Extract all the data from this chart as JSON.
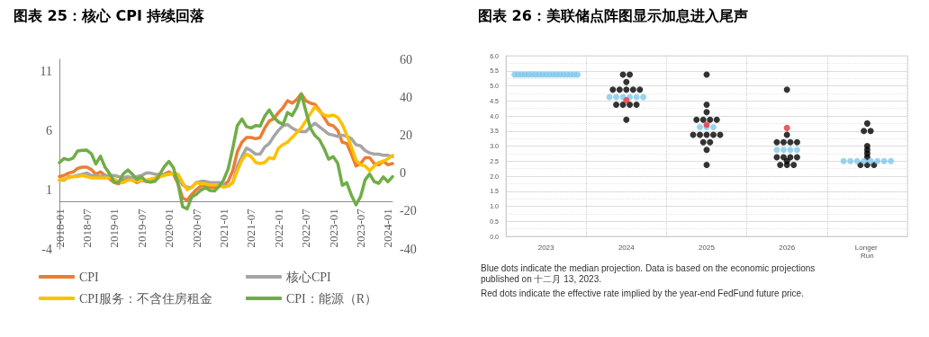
{
  "chart_data": [
    {
      "type": "line",
      "title": "图表 25：核心 CPI 持续回落",
      "categories": [
        "2018-01",
        null,
        null,
        null,
        null,
        null,
        "2018-07",
        null,
        null,
        null,
        null,
        null,
        "2019-01",
        null,
        null,
        null,
        null,
        null,
        "2019-07",
        null,
        null,
        null,
        null,
        null,
        "2020-01",
        null,
        null,
        null,
        null,
        null,
        "2020-07",
        null,
        null,
        null,
        null,
        null,
        "2021-01",
        null,
        null,
        null,
        null,
        null,
        "2021-07",
        null,
        null,
        null,
        null,
        null,
        "2022-01",
        null,
        null,
        null,
        null,
        null,
        "2022-07",
        null,
        null,
        null,
        null,
        null,
        "2023-01",
        null,
        null,
        null,
        null,
        null,
        "2023-07",
        null,
        null,
        null,
        null,
        null,
        "2024-01",
        null
      ],
      "ylim": [
        -4,
        12
      ],
      "yticks": [
        -4,
        1,
        6,
        11
      ],
      "y2lim": [
        -40,
        60
      ],
      "y2ticks": [
        -40,
        -20,
        0,
        20,
        40,
        60
      ],
      "legend": "bottom",
      "line_style": "solid",
      "series": [
        {
          "name": "CPI",
          "color": "#ed7d31",
          "values": [
            2.1,
            2.2,
            2.4,
            2.5,
            2.8,
            2.9,
            2.9,
            2.7,
            2.3,
            2.5,
            2.2,
            1.9,
            1.6,
            1.5,
            1.9,
            2.0,
            1.8,
            1.6,
            1.8,
            1.7,
            1.7,
            1.8,
            2.1,
            2.3,
            2.5,
            2.3,
            1.5,
            0.3,
            0.1,
            0.6,
            1.0,
            1.3,
            1.4,
            1.2,
            1.2,
            1.4,
            1.4,
            1.7,
            2.6,
            4.2,
            5.0,
            5.4,
            5.4,
            5.3,
            5.4,
            6.2,
            6.8,
            7.0,
            7.5,
            7.9,
            8.5,
            8.3,
            8.6,
            9.1,
            8.5,
            8.3,
            8.2,
            7.7,
            7.1,
            6.5,
            6.4,
            6.0,
            5.0,
            4.9,
            4.0,
            3.0,
            3.2,
            3.7,
            3.7,
            3.2,
            3.1,
            3.4,
            3.1,
            3.2
          ]
        },
        {
          "name": "核心CPI",
          "color": "#a5a5a5",
          "values": [
            1.8,
            1.8,
            2.1,
            2.1,
            2.2,
            2.3,
            2.4,
            2.2,
            2.2,
            2.1,
            2.2,
            2.2,
            2.2,
            2.1,
            2.0,
            2.1,
            2.0,
            2.1,
            2.2,
            2.4,
            2.4,
            2.3,
            2.3,
            2.3,
            2.3,
            2.4,
            2.1,
            1.4,
            1.2,
            1.2,
            1.6,
            1.7,
            1.7,
            1.6,
            1.6,
            1.6,
            1.4,
            1.3,
            1.6,
            3.0,
            3.8,
            4.5,
            4.3,
            4.0,
            4.0,
            4.6,
            4.9,
            5.5,
            6.0,
            6.4,
            6.5,
            6.2,
            6.0,
            5.9,
            5.9,
            6.3,
            6.6,
            6.3,
            6.0,
            5.7,
            5.6,
            5.5,
            5.6,
            5.5,
            5.3,
            4.8,
            4.7,
            4.3,
            4.1,
            4.0,
            4.0,
            3.9,
            3.9,
            3.8
          ]
        },
        {
          "name": "CPI服务：不含住房租金",
          "color": "#ffc000",
          "values": [
            1.8,
            1.9,
            2.0,
            2.1,
            2.1,
            2.2,
            2.1,
            2.0,
            2.0,
            2.0,
            2.0,
            2.0,
            1.9,
            1.6,
            1.6,
            1.8,
            1.8,
            1.7,
            1.8,
            1.8,
            1.9,
            2.0,
            2.1,
            2.2,
            2.3,
            2.4,
            2.3,
            1.6,
            1.0,
            1.2,
            1.6,
            1.5,
            1.5,
            1.4,
            1.4,
            1.4,
            1.2,
            1.3,
            1.6,
            2.6,
            3.5,
            4.0,
            3.8,
            3.3,
            3.2,
            3.3,
            3.7,
            3.6,
            4.5,
            4.8,
            5.0,
            5.4,
            5.8,
            6.2,
            6.8,
            7.4,
            8.0,
            7.6,
            7.3,
            7.2,
            7.3,
            7.1,
            6.5,
            5.6,
            4.6,
            3.5,
            3.1,
            3.0,
            2.6,
            3.0,
            3.3,
            3.4,
            3.6,
            3.9
          ]
        },
        {
          "name": "CPI：能源（R）",
          "color": "#70ad47",
          "axis": "y2",
          "values": [
            5.5,
            7.7,
            7.0,
            7.9,
            11.7,
            12.0,
            12.1,
            10.2,
            4.8,
            8.9,
            3.1,
            -0.3,
            -4.8,
            -5.0,
            -0.4,
            1.7,
            -0.6,
            -3.4,
            -2.0,
            -4.4,
            -4.8,
            -4.2,
            -0.6,
            3.4,
            6.2,
            2.8,
            -5.7,
            -17.7,
            -18.9,
            -12.6,
            -11.2,
            -9.0,
            -7.7,
            -9.2,
            -9.4,
            -7.0,
            -3.6,
            2.4,
            13.2,
            25.1,
            28.5,
            24.5,
            23.8,
            25.0,
            24.8,
            30.0,
            33.3,
            29.3,
            27.0,
            25.6,
            32.0,
            30.3,
            34.6,
            41.6,
            32.9,
            23.8,
            19.8,
            17.6,
            13.1,
            7.3,
            8.7,
            5.2,
            -6.4,
            -5.1,
            -11.7,
            -16.7,
            -12.5,
            -3.6,
            -0.5,
            -4.5,
            -5.4,
            -2.0,
            -4.6,
            -1.9
          ]
        }
      ]
    },
    {
      "type": "scatter",
      "title": "图表 26：美联储点阵图显示加息进入尾声",
      "categories": [
        "2023",
        "2024",
        "2025",
        "2026",
        "Longer Run"
      ],
      "ylim": [
        0,
        6
      ],
      "yticks": [
        {
          "value": 0,
          "label": "0.0"
        },
        {
          "value": 0.5,
          "label": "0.5"
        },
        {
          "value": 1,
          "label": "1.0"
        },
        {
          "value": 1.5,
          "label": "1.5"
        },
        {
          "value": 2,
          "label": "2.0"
        },
        {
          "value": 2.5,
          "label": "2.5"
        },
        {
          "value": 3,
          "label": "3.0"
        },
        {
          "value": 3.5,
          "label": "3.5"
        },
        {
          "value": 4,
          "label": "4.0"
        },
        {
          "value": 4.5,
          "label": "4.5"
        },
        {
          "value": 5,
          "label": "5.0"
        },
        {
          "value": 5.5,
          "label": "5.5"
        },
        {
          "value": 6,
          "label": "6.0"
        }
      ],
      "grid": true,
      "marker": "circle",
      "annotations": [
        "Blue dots indicate the median projection. Data is based on the economic projections published on 十二月 13, 2023.",
        "Red dots indicate the effective rate implied by the year-end FedFund future price."
      ],
      "series": [
        {
          "color": "#000000",
          "values": [
            null,
            5.375,
            5.375,
            4.875,
            3.75
          ]
        },
        {
          "color": "#000000",
          "values": [
            null,
            5.375,
            4.375,
            3.375,
            3.5
          ]
        },
        {
          "color": "#000000",
          "values": [
            null,
            5.125,
            4.125,
            3.125,
            3.5
          ]
        },
        {
          "color": "#000000",
          "values": [
            null,
            4.875,
            3.875,
            3.125,
            3.0
          ]
        },
        {
          "color": "#000000",
          "values": [
            null,
            4.875,
            3.875,
            3.125,
            2.875
          ]
        },
        {
          "color": "#000000",
          "values": [
            null,
            4.875,
            3.875,
            3.125,
            2.75
          ]
        },
        {
          "color": "#000000",
          "values": [
            null,
            4.875,
            3.875,
            2.625,
            2.625
          ]
        },
        {
          "color": "#000000",
          "values": [
            null,
            4.875,
            3.375,
            2.625,
            2.375
          ]
        },
        {
          "color": "#000000",
          "values": [
            null,
            4.375,
            3.375,
            2.625,
            2.375
          ]
        },
        {
          "color": "#000000",
          "values": [
            null,
            4.375,
            3.375,
            2.625,
            2.375
          ]
        },
        {
          "color": "#000000",
          "values": [
            null,
            4.375,
            3.375,
            2.5,
            null
          ]
        },
        {
          "color": "#000000",
          "values": [
            null,
            4.375,
            3.375,
            2.375,
            null
          ]
        },
        {
          "color": "#000000",
          "values": [
            null,
            3.875,
            3.125,
            2.375,
            null
          ]
        },
        {
          "color": "#000000",
          "values": [
            null,
            null,
            3.125,
            2.375,
            null
          ]
        },
        {
          "color": "#000000",
          "values": [
            null,
            null,
            2.875,
            null,
            null
          ]
        },
        {
          "color": "#000000",
          "values": [
            null,
            null,
            2.375,
            null,
            null
          ]
        },
        {
          "color": "#7fc8ec",
          "values": [
            5.375,
            4.625,
            3.625,
            2.875,
            2.5
          ]
        },
        {
          "color": "#7fc8ec",
          "values": [
            5.375,
            4.625,
            3.625,
            2.875,
            2.5
          ]
        },
        {
          "color": "#7fc8ec",
          "values": [
            5.375,
            4.625,
            3.625,
            2.875,
            2.5
          ]
        },
        {
          "color": "#7fc8ec",
          "values": [
            5.375,
            4.625,
            null,
            2.875,
            2.5
          ]
        },
        {
          "color": "#7fc8ec",
          "values": [
            5.375,
            4.625,
            null,
            null,
            2.5
          ]
        },
        {
          "color": "#7fc8ec",
          "values": [
            5.375,
            4.625,
            null,
            null,
            2.5
          ]
        },
        {
          "color": "#7fc8ec",
          "values": [
            5.375,
            null,
            null,
            null,
            2.5
          ]
        },
        {
          "color": "#7fc8ec",
          "values": [
            5.375,
            null,
            null,
            null,
            2.5
          ]
        },
        {
          "color": "#7fc8ec",
          "values": [
            5.375,
            null,
            null,
            null,
            null
          ]
        },
        {
          "color": "#7fc8ec",
          "values": [
            5.375,
            null,
            null,
            null,
            null
          ]
        },
        {
          "color": "#7fc8ec",
          "values": [
            5.375,
            null,
            null,
            null,
            null
          ]
        },
        {
          "color": "#7fc8ec",
          "values": [
            5.375,
            null,
            null,
            null,
            null
          ]
        },
        {
          "color": "#7fc8ec",
          "values": [
            5.375,
            null,
            null,
            null,
            null
          ]
        },
        {
          "color": "#7fc8ec",
          "values": [
            5.375,
            null,
            null,
            null,
            null
          ]
        },
        {
          "color": "#7fc8ec",
          "values": [
            5.375,
            null,
            null,
            null,
            null
          ]
        },
        {
          "color": "#7fc8ec",
          "values": [
            5.375,
            null,
            null,
            null,
            null
          ]
        },
        {
          "color": "#7fc8ec",
          "values": [
            5.375,
            null,
            null,
            null,
            null
          ]
        },
        {
          "color": "#7fc8ec",
          "values": [
            5.375,
            null,
            null,
            null,
            null
          ]
        },
        {
          "color": "#7fc8ec",
          "values": [
            5.375,
            null,
            null,
            null,
            null
          ]
        },
        {
          "color": "#e8333a",
          "values": [
            null,
            4.52,
            3.71,
            3.6,
            null
          ]
        }
      ]
    }
  ]
}
